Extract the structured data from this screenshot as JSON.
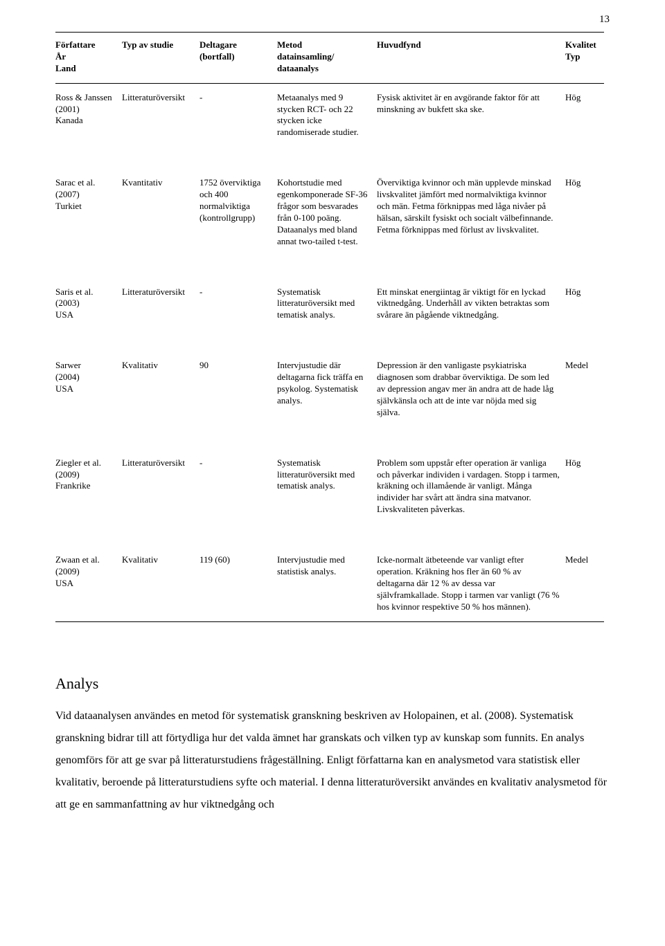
{
  "page_number": "13",
  "table": {
    "headers": {
      "author": "Författare\nÅr\nLand",
      "study_type": "Typ av studie",
      "participants": "Deltagare (bortfall)",
      "method": "Metod\ndatainsamling/\ndataanalys",
      "findings": "Huvudfynd",
      "quality": "Kvalitet\nTyp"
    },
    "rows": [
      {
        "author": "Ross & Janssen\n(2001)\nKanada",
        "study_type": "Litteraturöversikt",
        "participants": "-",
        "method": "Metaanalys med 9 stycken RCT- och 22 stycken icke randomiserade studier.",
        "findings": "Fysisk aktivitet är en avgörande faktor för att minskning av bukfett ska ske.",
        "quality": "Hög"
      },
      {
        "author": "Sarac et al.\n(2007)\nTurkiet",
        "study_type": "Kvantitativ",
        "participants": "1752 överviktiga och 400 normalviktiga (kontrollgrupp)",
        "method": "Kohortstudie med egenkomponerade SF-36 frågor som besvarades från 0-100 poäng. Dataanalys med bland annat two-tailed t-test.",
        "findings": "Överviktiga kvinnor och män upplevde minskad livskvalitet jämfört med normalviktiga kvinnor och män. Fetma förknippas med låga nivåer på hälsan, särskilt fysiskt och socialt välbefinnande. Fetma förknippas med förlust av livskvalitet.",
        "quality": "Hög"
      },
      {
        "author": "Saris et al.\n(2003)\nUSA",
        "study_type": "Litteraturöversikt",
        "participants": "-",
        "method": "Systematisk litteraturöversikt med tematisk analys.",
        "findings": "Ett minskat energiintag är viktigt för en lyckad viktnedgång. Underhåll av vikten betraktas som svårare än pågående viktnedgång.",
        "quality": "Hög"
      },
      {
        "author": "Sarwer\n(2004)\nUSA",
        "study_type": "Kvalitativ",
        "participants": "90",
        "method": "Intervjustudie där deltagarna fick träffa en psykolog. Systematisk analys.",
        "findings": "Depression är den vanligaste psykiatriska diagnosen som drabbar överviktiga. De som led av depression angav mer än andra att de hade låg självkänsla och att de inte var nöjda med sig själva.",
        "quality": "Medel"
      },
      {
        "author": "Ziegler et al.\n(2009)\nFrankrike",
        "study_type": "Litteraturöversikt",
        "participants": "-",
        "method": "Systematisk litteraturöversikt med tematisk analys.",
        "findings": "Problem som uppstår efter operation är vanliga och påverkar individen i vardagen. Stopp i tarmen, kräkning och illamående är vanligt. Många individer har svårt att ändra sina matvanor. Livskvaliteten påverkas.",
        "quality": "Hög"
      },
      {
        "author": "Zwaan et al.\n(2009)\nUSA",
        "study_type": "Kvalitativ",
        "participants": "119 (60)",
        "method": "Intervjustudie med statistisk analys.",
        "findings": "Icke-normalt ätbeteende var vanligt efter operation. Kräkning hos fler än 60 % av deltagarna där 12 % av dessa var självframkallade. Stopp i tarmen var vanligt (76 % hos kvinnor respektive 50 % hos männen).",
        "quality": "Medel"
      }
    ]
  },
  "analysis": {
    "heading": "Analys",
    "paragraph": "Vid dataanalysen användes en metod för systematisk granskning beskriven av Holopainen, et al. (2008). Systematisk granskning bidrar till att förtydliga hur det valda ämnet har granskats och vilken typ av kunskap som funnits. En analys genomförs för att ge svar på litteraturstudiens frågeställning. Enligt författarna kan en analysmetod vara statistisk eller kvalitativ, beroende på litteraturstudiens syfte och material. I denna litteraturöversikt användes en kvalitativ analysmetod för att ge en sammanfattning av hur viktnedgång och"
  }
}
